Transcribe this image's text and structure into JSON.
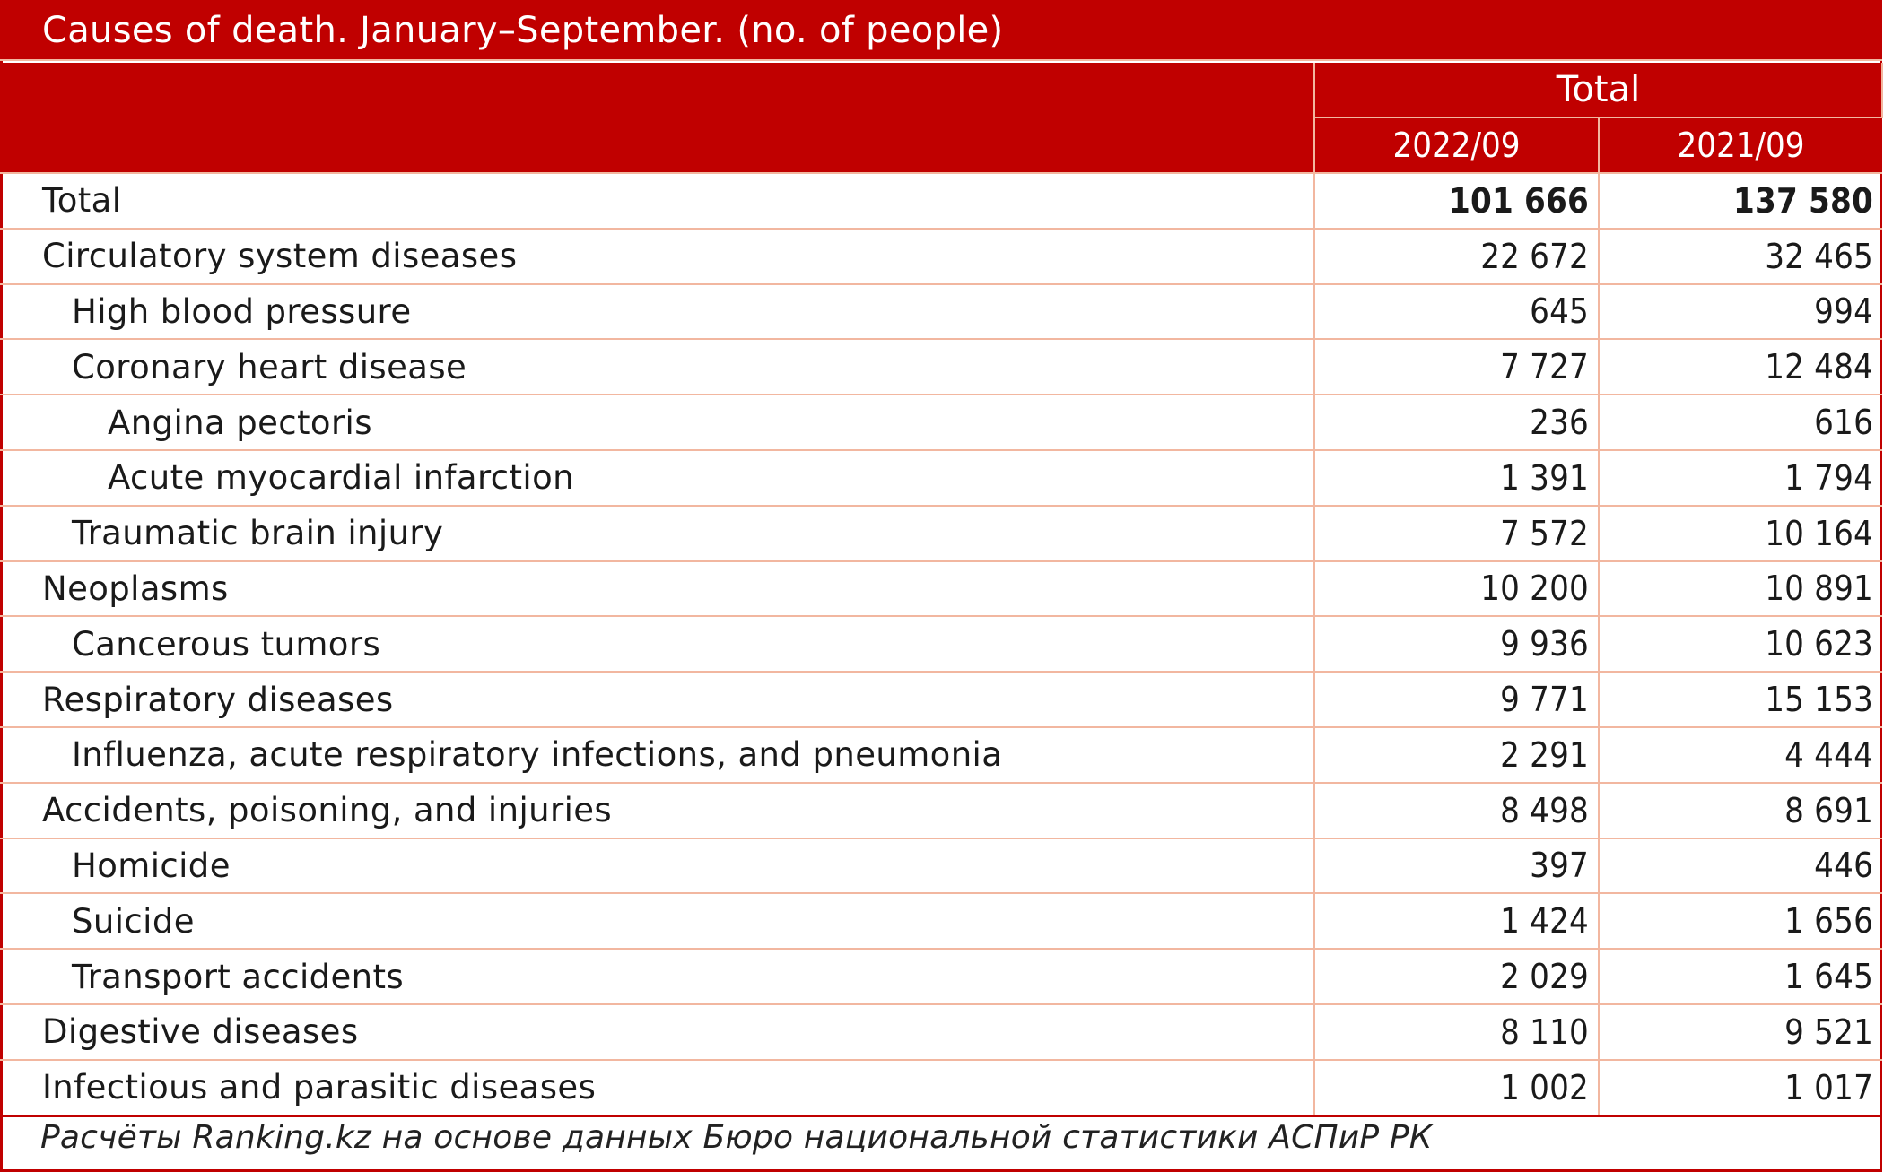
{
  "title": "Causes of death. January–September. (no. of people)",
  "header": {
    "group_label": "Total",
    "col_2022": "2022/09",
    "col_2021": "2021/09"
  },
  "rows": [
    {
      "label": "Total",
      "v2022": "101 666",
      "v2021": "137 580",
      "level": 0,
      "bold": true
    },
    {
      "label": "Circulatory system diseases",
      "v2022": "22 672",
      "v2021": "32 465",
      "level": 0
    },
    {
      "label": "High blood pressure",
      "v2022": "645",
      "v2021": "994",
      "level": 1
    },
    {
      "label": "Coronary heart disease",
      "v2022": "7 727",
      "v2021": "12 484",
      "level": 1
    },
    {
      "label": "Angina pectoris",
      "v2022": "236",
      "v2021": "616",
      "level": 2
    },
    {
      "label": "Acute myocardial infarction",
      "v2022": "1 391",
      "v2021": "1 794",
      "level": 2
    },
    {
      "label": "Traumatic brain injury",
      "v2022": "7 572",
      "v2021": "10 164",
      "level": 1
    },
    {
      "label": "Neoplasms",
      "v2022": "10 200",
      "v2021": "10 891",
      "level": 0
    },
    {
      "label": "Cancerous tumors",
      "v2022": "9 936",
      "v2021": "10 623",
      "level": 1
    },
    {
      "label": "Respiratory diseases",
      "v2022": "9 771",
      "v2021": "15 153",
      "level": 0
    },
    {
      "label": "Influenza, acute respiratory infections, and pneumonia",
      "v2022": "2 291",
      "v2021": "4 444",
      "level": 1
    },
    {
      "label": "Accidents, poisoning, and injuries",
      "v2022": "8 498",
      "v2021": "8 691",
      "level": 0
    },
    {
      "label": "Homicide",
      "v2022": "397",
      "v2021": "446",
      "level": 1
    },
    {
      "label": "Suicide",
      "v2022": "1 424",
      "v2021": "1 656",
      "level": 1
    },
    {
      "label": "Transport accidents",
      "v2022": "2 029",
      "v2021": "1 645",
      "level": 1
    },
    {
      "label": "Digestive diseases",
      "v2022": "8 110",
      "v2021": "9 521",
      "level": 0
    },
    {
      "label": "Infectious and parasitic diseases",
      "v2022": "1 002",
      "v2021": "1 017",
      "level": 0
    }
  ],
  "source": "Расчёты Ranking.kz на основе данных Бюро национальной статистики АСПиР РК",
  "colors": {
    "header_bg": "#c00000",
    "grid_line": "#f2b7a0",
    "header_text": "#ffffff"
  }
}
